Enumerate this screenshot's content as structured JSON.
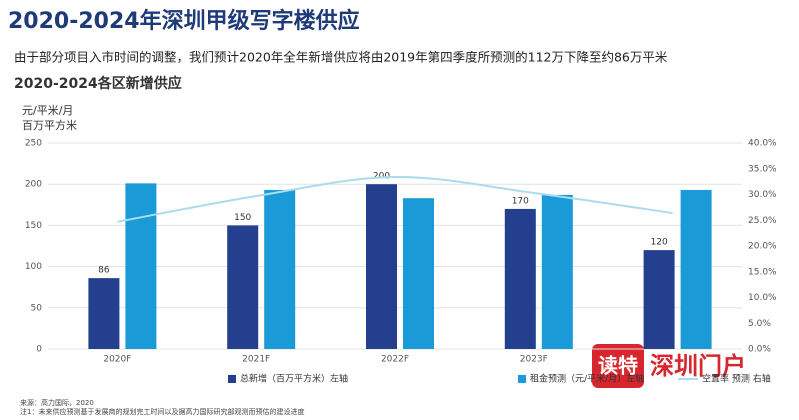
{
  "chart_data": {
    "type": "bar-line",
    "title": "2020-2024年深圳甲级写字楼供应",
    "subtitle": "由于部分项目入市时间的调整，我们预计2020年全年新增供应将由2019年第四季度所预测的112万下降至约86万平米",
    "chart_title": "2020-2024各区新增供应",
    "y_label": [
      "元/平米/月",
      "百万平方米"
    ],
    "categories": [
      "2020F",
      "2021F",
      "2022F",
      "2023F",
      null
    ],
    "series": [
      {
        "name": "总新增（百万平方米）左轴",
        "type": "bar",
        "color": "#243f8e",
        "values": [
          86,
          150,
          200,
          170,
          120
        ],
        "data_labels": true
      },
      {
        "name": "租金预测（元/平米/月）左轴",
        "type": "bar",
        "color": "#1a9ad6",
        "values": [
          201,
          193,
          183,
          187,
          193
        ]
      },
      {
        "name": "空置率 预测 右轴",
        "type": "line",
        "axis": "y2",
        "color": "#aadcee",
        "values": [
          24.7,
          29.7,
          33.4,
          30.3,
          26.4
        ]
      }
    ],
    "ylim": [
      0,
      250
    ],
    "yticks": [
      0,
      50,
      100,
      150,
      200,
      250
    ],
    "y2lim": [
      0,
      40
    ],
    "y2ticks": [
      {
        "value": 0,
        "label": "0.0%"
      },
      {
        "value": 5,
        "label": "5.0%"
      },
      {
        "value": 10,
        "label": "10.0%"
      },
      {
        "value": 15,
        "label": "15.0%"
      },
      {
        "value": 20,
        "label": "20.0%"
      },
      {
        "value": 25,
        "label": "25.0%"
      },
      {
        "value": 30,
        "label": "30.0%"
      },
      {
        "value": 35,
        "label": "35.0%"
      },
      {
        "value": 40,
        "label": "40.0%"
      }
    ],
    "grid": true,
    "legend": "bottom",
    "source": "来源：高力国际，2020",
    "note": "注1：未来供应预测基于发展商的规划完工时间以及据高力国际研究部观测而预估的建设进度",
    "watermark": [
      "读特",
      "深圳门户"
    ]
  }
}
